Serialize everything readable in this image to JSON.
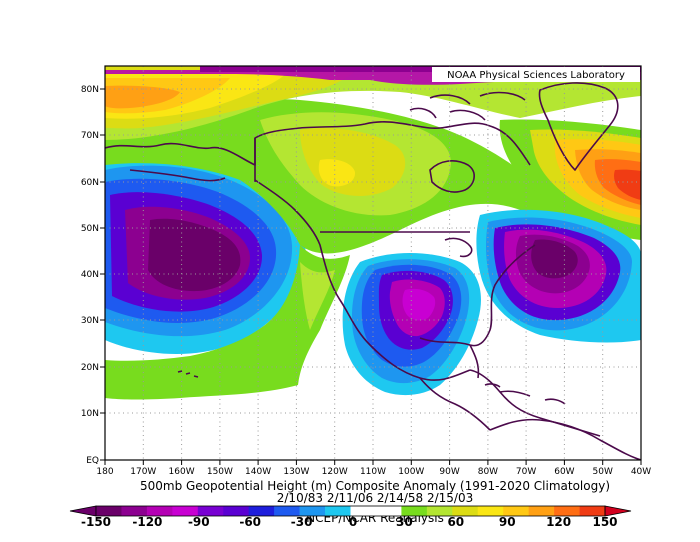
{
  "credit": "NOAA Physical Sciences Laboratory",
  "lat_labels": [
    "80N",
    "70N",
    "60N",
    "50N",
    "40N",
    "30N",
    "20N",
    "10N",
    "EQ"
  ],
  "lon_labels": [
    "180",
    "170W",
    "160W",
    "150W",
    "140W",
    "130W",
    "120W",
    "110W",
    "100W",
    "90W",
    "80W",
    "70W",
    "60W",
    "50W",
    "40W"
  ],
  "caption": {
    "title": "500mb Geopotential Height (m) Composite Anomaly (1991-2020 Climatology)",
    "dates": "2/10/83 2/11/06 2/14/58 2/15/03",
    "source": "NCEP/NCAR Reanalysis"
  },
  "colorbar": {
    "labels": [
      "-150",
      "-120",
      "-90",
      "-60",
      "-30",
      "0",
      "30",
      "60",
      "90",
      "120",
      "150"
    ],
    "colors": [
      "#6a0069",
      "#8c0090",
      "#b400b4",
      "#c800d2",
      "#7800d2",
      "#5a00d2",
      "#1e1edc",
      "#1e5af0",
      "#1e96f0",
      "#1ec8f0",
      "#ffffff",
      "#ffffff",
      "#78dc1e",
      "#b4e632",
      "#dcdc14",
      "#fae614",
      "#ffc814",
      "#ffa014",
      "#ff6e14",
      "#f03c14"
    ],
    "low_end": "#6a0069",
    "high_end": "#d2001e"
  }
}
